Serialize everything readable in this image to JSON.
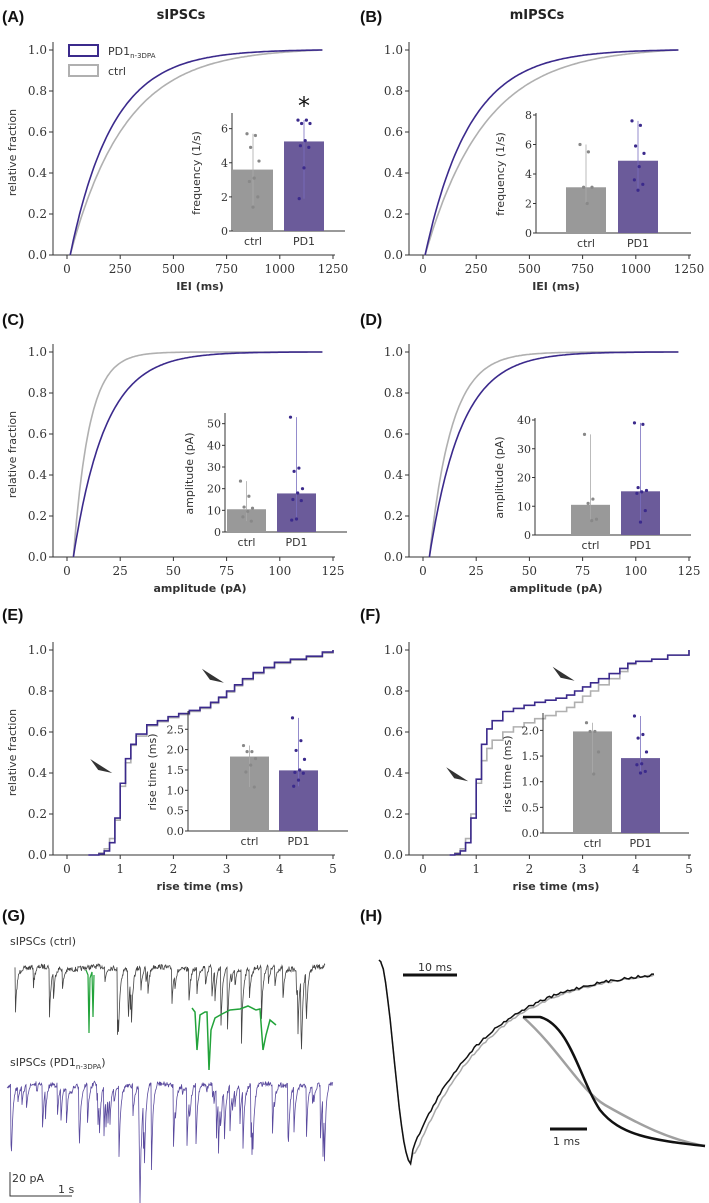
{
  "colors": {
    "pd1": "#3b2a8c",
    "pd1_bar": "#6b5b9a",
    "ctrl": "#b0b0b0",
    "ctrl_bar": "#999999",
    "ctrl_dot": "#888888",
    "trace_ctrl": "#444444",
    "trace_pd1": "#5a4a9e",
    "highlight": "#22a33a",
    "axis": "#333333"
  },
  "legend": {
    "pd1_label": "PD1",
    "pd1_sub": "n-3DPA",
    "ctrl_label": "ctrl"
  },
  "titles": {
    "left": "sIPSCs",
    "right": "mIPSCs"
  },
  "chart_data": [
    {
      "panel": "A",
      "type": "line",
      "title": "sIPSCs",
      "xlabel": "IEI (ms)",
      "ylabel": "relative fraction",
      "xlim": [
        0,
        1250
      ],
      "ylim": [
        0,
        1.0
      ],
      "xticks": [
        0,
        250,
        500,
        750,
        1000,
        1250
      ],
      "yticks": [
        "0.0",
        "0.2",
        "0.4",
        "0.6",
        "0.8",
        "1.0"
      ],
      "series": [
        {
          "name": "PD1",
          "kind": "exp",
          "x0": 15,
          "xmax": 1200,
          "tau": 200
        },
        {
          "name": "ctrl",
          "kind": "exp",
          "x0": 15,
          "xmax": 1200,
          "tau": 260
        }
      ],
      "inset": {
        "type": "bar",
        "ylabel": "frequency (1/s)",
        "ylim": [
          0,
          6.8
        ],
        "yticks": [
          0,
          2,
          4,
          6
        ],
        "categories": [
          "ctrl",
          "PD1"
        ],
        "values": [
          3.6,
          5.25
        ],
        "err": [
          [
            1.4,
            5.7
          ],
          [
            1.9,
            6.5
          ]
        ],
        "significance": "*",
        "points": [
          [
            5.7,
            5.6,
            4.9,
            4.1,
            3.1,
            2.9,
            2.0,
            1.4
          ],
          [
            6.5,
            6.5,
            6.3,
            6.3,
            5.3,
            5.0,
            4.9,
            3.7,
            1.9
          ]
        ]
      }
    },
    {
      "panel": "B",
      "type": "line",
      "title": "mIPSCs",
      "xlabel": "IEI (ms)",
      "ylabel": "",
      "xlim": [
        0,
        1250
      ],
      "ylim": [
        0,
        1.0
      ],
      "xticks": [
        0,
        250,
        500,
        750,
        1000,
        1250
      ],
      "yticks": [
        "0.0",
        "0.2",
        "0.4",
        "0.6",
        "0.8",
        "1.0"
      ],
      "series": [
        {
          "name": "PD1",
          "kind": "exp",
          "x0": 10,
          "xmax": 1200,
          "tau": 210
        },
        {
          "name": "ctrl",
          "kind": "exp",
          "x0": 10,
          "xmax": 1200,
          "tau": 280
        }
      ],
      "inset": {
        "type": "bar",
        "ylabel": "frequency (1/s)",
        "ylim": [
          0,
          8
        ],
        "yticks": [
          0,
          2,
          4,
          6,
          8
        ],
        "categories": [
          "ctrl",
          "PD1"
        ],
        "values": [
          3.1,
          4.9
        ],
        "err": [
          [
            2.0,
            6.0
          ],
          [
            2.9,
            7.6
          ]
        ],
        "significance": "",
        "points": [
          [
            6.0,
            5.5,
            3.1,
            3.1,
            2.0
          ],
          [
            7.6,
            7.3,
            5.9,
            5.4,
            4.5,
            3.6,
            3.3,
            2.9
          ]
        ]
      }
    },
    {
      "panel": "C",
      "type": "line",
      "title": "",
      "xlabel": "amplitude (pA)",
      "ylabel": "relative fraction",
      "xlim": [
        0,
        125
      ],
      "ylim": [
        0,
        1.0
      ],
      "xticks": [
        0,
        25,
        50,
        75,
        100,
        125
      ],
      "yticks": [
        "0.0",
        "0.2",
        "0.4",
        "0.6",
        "0.8",
        "1.0"
      ],
      "series": [
        {
          "name": "PD1",
          "kind": "exp",
          "x0": 3,
          "xmax": 120,
          "tau": 15
        },
        {
          "name": "ctrl",
          "kind": "exp",
          "x0": 3,
          "xmax": 120,
          "tau": 7.5
        }
      ],
      "inset": {
        "type": "bar",
        "ylabel": "amplitude (pA)",
        "ylim": [
          0,
          54
        ],
        "yticks": [
          0,
          10,
          20,
          30,
          40,
          50
        ],
        "categories": [
          "ctrl",
          "PD1"
        ],
        "values": [
          10.5,
          17.8
        ],
        "err": [
          [
            5,
            23.5
          ],
          [
            5.5,
            53
          ]
        ],
        "significance": "",
        "points": [
          [
            23.5,
            16.5,
            11.5,
            11,
            9.5,
            7,
            5
          ],
          [
            53,
            29.5,
            28,
            20,
            18,
            15,
            14.5,
            6,
            5.5
          ]
        ]
      }
    },
    {
      "panel": "D",
      "type": "line",
      "title": "",
      "xlabel": "amplitude (pA)",
      "ylabel": "",
      "xlim": [
        0,
        125
      ],
      "ylim": [
        0,
        1.0
      ],
      "xticks": [
        0,
        25,
        50,
        75,
        100,
        125
      ],
      "yticks": [
        "0.0",
        "0.2",
        "0.4",
        "0.6",
        "0.8",
        "1.0"
      ],
      "series": [
        {
          "name": "PD1",
          "kind": "exp",
          "x0": 3,
          "xmax": 120,
          "tau": 15
        },
        {
          "name": "ctrl",
          "kind": "exp",
          "x0": 3,
          "xmax": 120,
          "tau": 10.5
        }
      ],
      "inset": {
        "type": "bar",
        "ylabel": "amplitude (pA)",
        "ylim": [
          0,
          40
        ],
        "yticks": [
          0,
          10,
          20,
          30,
          40
        ],
        "categories": [
          "ctrl",
          "PD1"
        ],
        "values": [
          10.5,
          15.2
        ],
        "err": [
          [
            5,
            35
          ],
          [
            4.5,
            39
          ]
        ],
        "significance": "",
        "points": [
          [
            35,
            12.5,
            11,
            5.5,
            5
          ],
          [
            39,
            38.5,
            16.5,
            15.5,
            15,
            14.5,
            8.5,
            4.5
          ]
        ]
      }
    },
    {
      "panel": "E",
      "type": "line",
      "title": "",
      "xlabel": "rise time (ms)",
      "ylabel": "relative fraction",
      "xlim": [
        0,
        5
      ],
      "ylim": [
        0,
        1.0
      ],
      "xticks": [
        0,
        1,
        2,
        3,
        4,
        5
      ],
      "yticks": [
        "0.0",
        "0.2",
        "0.4",
        "0.6",
        "0.8",
        "1.0"
      ],
      "arrowheads": [
        [
          0.85,
          0.4
        ],
        [
          2.95,
          0.84
        ]
      ],
      "series": [
        {
          "name": "PD1",
          "kind": "step",
          "points": [
            [
              0.4,
              0
            ],
            [
              0.6,
              0.005
            ],
            [
              0.7,
              0.02
            ],
            [
              0.8,
              0.06
            ],
            [
              0.9,
              0.18
            ],
            [
              1.0,
              0.35
            ],
            [
              1.1,
              0.47
            ],
            [
              1.2,
              0.54
            ],
            [
              1.3,
              0.59
            ],
            [
              1.5,
              0.635
            ],
            [
              1.7,
              0.655
            ],
            [
              1.9,
              0.675
            ],
            [
              2.1,
              0.69
            ],
            [
              2.3,
              0.705
            ],
            [
              2.5,
              0.72
            ],
            [
              2.7,
              0.745
            ],
            [
              2.85,
              0.77
            ],
            [
              3.0,
              0.8
            ],
            [
              3.15,
              0.83
            ],
            [
              3.3,
              0.86
            ],
            [
              3.5,
              0.89
            ],
            [
              3.7,
              0.915
            ],
            [
              3.9,
              0.94
            ],
            [
              4.2,
              0.955
            ],
            [
              4.5,
              0.97
            ],
            [
              4.8,
              0.99
            ],
            [
              5.0,
              1.0
            ]
          ]
        },
        {
          "name": "ctrl",
          "kind": "step",
          "points": [
            [
              0.4,
              0
            ],
            [
              0.6,
              0.01
            ],
            [
              0.7,
              0.03
            ],
            [
              0.8,
              0.08
            ],
            [
              0.9,
              0.17
            ],
            [
              1.0,
              0.335
            ],
            [
              1.1,
              0.45
            ],
            [
              1.2,
              0.535
            ],
            [
              1.3,
              0.58
            ],
            [
              1.5,
              0.63
            ],
            [
              1.7,
              0.65
            ],
            [
              1.9,
              0.67
            ],
            [
              2.1,
              0.685
            ],
            [
              2.3,
              0.7
            ],
            [
              2.5,
              0.715
            ],
            [
              2.7,
              0.74
            ],
            [
              2.85,
              0.765
            ],
            [
              3.0,
              0.795
            ],
            [
              3.15,
              0.825
            ],
            [
              3.3,
              0.855
            ],
            [
              3.5,
              0.885
            ],
            [
              3.7,
              0.91
            ],
            [
              3.9,
              0.935
            ],
            [
              4.2,
              0.95
            ],
            [
              4.5,
              0.965
            ],
            [
              4.8,
              0.985
            ],
            [
              5.0,
              1.0
            ]
          ]
        }
      ],
      "inset": {
        "type": "bar",
        "ylabel": "rise time (ms)",
        "ylim": [
          0,
          2.9
        ],
        "yticks": [
          "0.0",
          "0.5",
          "1.0",
          "1.5",
          "2.0",
          "2.5"
        ],
        "categories": [
          "ctrl",
          "PD1"
        ],
        "values": [
          1.83,
          1.49
        ],
        "err": [
          [
            1.08,
            2.1
          ],
          [
            1.1,
            2.78
          ]
        ],
        "significance": "",
        "points": [
          [
            2.1,
            1.95,
            1.95,
            1.78,
            1.62,
            1.45,
            1.08
          ],
          [
            2.78,
            2.22,
            1.98,
            1.76,
            1.5,
            1.44,
            1.42,
            1.25,
            1.1
          ]
        ]
      }
    },
    {
      "panel": "F",
      "type": "line",
      "title": "",
      "xlabel": "rise time (ms)",
      "ylabel": "",
      "xlim": [
        0,
        5
      ],
      "ylim": [
        0,
        1.0
      ],
      "xticks": [
        0,
        1,
        2,
        3,
        4,
        5
      ],
      "yticks": [
        "0.0",
        "0.2",
        "0.4",
        "0.6",
        "0.8",
        "1.0"
      ],
      "arrowheads": [
        [
          0.85,
          0.36
        ],
        [
          2.85,
          0.85
        ]
      ],
      "series": [
        {
          "name": "PD1",
          "kind": "step",
          "points": [
            [
              0.5,
              0
            ],
            [
              0.6,
              0.005
            ],
            [
              0.7,
              0.02
            ],
            [
              0.8,
              0.06
            ],
            [
              0.9,
              0.18
            ],
            [
              1.0,
              0.37
            ],
            [
              1.1,
              0.54
            ],
            [
              1.2,
              0.615
            ],
            [
              1.3,
              0.655
            ],
            [
              1.5,
              0.7
            ],
            [
              1.7,
              0.715
            ],
            [
              1.9,
              0.73
            ],
            [
              2.1,
              0.745
            ],
            [
              2.3,
              0.755
            ],
            [
              2.5,
              0.765
            ],
            [
              2.7,
              0.78
            ],
            [
              2.85,
              0.8
            ],
            [
              3.0,
              0.82
            ],
            [
              3.15,
              0.84
            ],
            [
              3.3,
              0.86
            ],
            [
              3.5,
              0.885
            ],
            [
              3.7,
              0.91
            ],
            [
              3.85,
              0.935
            ],
            [
              4.0,
              0.945
            ],
            [
              4.3,
              0.955
            ],
            [
              4.6,
              0.975
            ],
            [
              5.0,
              1.0
            ]
          ]
        },
        {
          "name": "ctrl",
          "kind": "step",
          "points": [
            [
              0.5,
              0
            ],
            [
              0.6,
              0.01
            ],
            [
              0.7,
              0.03
            ],
            [
              0.8,
              0.08
            ],
            [
              0.9,
              0.2
            ],
            [
              1.0,
              0.35
            ],
            [
              1.1,
              0.46
            ],
            [
              1.2,
              0.52
            ],
            [
              1.3,
              0.56
            ],
            [
              1.5,
              0.6
            ],
            [
              1.7,
              0.625
            ],
            [
              1.9,
              0.645
            ],
            [
              2.1,
              0.665
            ],
            [
              2.3,
              0.68
            ],
            [
              2.5,
              0.7
            ],
            [
              2.7,
              0.72
            ],
            [
              2.85,
              0.745
            ],
            [
              3.0,
              0.775
            ],
            [
              3.15,
              0.8
            ],
            [
              3.3,
              0.83
            ],
            [
              3.5,
              0.86
            ],
            [
              3.7,
              0.895
            ],
            [
              3.85,
              0.93
            ],
            [
              4.0,
              0.945
            ],
            [
              4.3,
              0.955
            ],
            [
              4.6,
              0.975
            ],
            [
              5.0,
              1.0
            ]
          ]
        }
      ],
      "inset": {
        "type": "bar",
        "ylabel": "rise time (ms)",
        "ylim": [
          0,
          2.3
        ],
        "yticks": [
          "0.0",
          "0.5",
          "1.0",
          "1.5",
          "2.0"
        ],
        "categories": [
          "ctrl",
          "PD1"
        ],
        "values": [
          1.98,
          1.46
        ],
        "err": [
          [
            1.15,
            2.15
          ],
          [
            1.17,
            2.28
          ]
        ],
        "significance": "",
        "points": [
          [
            2.15,
            1.98,
            1.98,
            1.58,
            1.15
          ],
          [
            2.28,
            1.92,
            1.85,
            1.58,
            1.35,
            1.33,
            1.2,
            1.17
          ]
        ]
      }
    }
  ],
  "traces": {
    "panel": "G",
    "ctrl_label": "sIPSCs (ctrl)",
    "pd1_label_main": "sIPSCs (PD1",
    "pd1_label_sub": "n-3DPA",
    "pd1_label_end": ")",
    "scale_y": "20 pA",
    "scale_x": "1 s"
  },
  "averages": {
    "panel": "H",
    "scale_large": "10 ms",
    "scale_small": "1 ms"
  },
  "panel_labels": [
    "(A)",
    "(B)",
    "(C)",
    "(D)",
    "(E)",
    "(F)",
    "(G)",
    "(H)"
  ]
}
